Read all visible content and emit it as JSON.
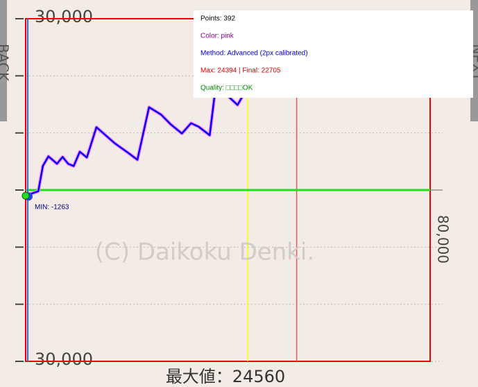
{
  "chart_data": {
    "type": "line",
    "title": "最大値：24560",
    "watermark": "(C) Daikoku Denki.",
    "annotation": "MIN: -1263",
    "x": [
      0,
      2500,
      3400,
      4500,
      6200,
      7300,
      8400,
      9500,
      10700,
      12100,
      14000,
      17600,
      20300,
      22100,
      24400,
      26800,
      28700,
      30900,
      32700,
      34200,
      36400,
      37500,
      40200,
      41900,
      43600
    ],
    "series": [
      {
        "color": "#0000ee",
        "values": [
          -1000,
          -200,
          4200,
          5900,
          4600,
          5800,
          4600,
          4200,
          6700,
          5700,
          11000,
          8200,
          6500,
          5300,
          14500,
          13200,
          11500,
          9900,
          11700,
          11100,
          9600,
          17500,
          16300,
          14900,
          17500
        ]
      }
    ],
    "xlim": [
      0,
      80000
    ],
    "xticks": [
      {
        "value": 80000,
        "label": "80,000"
      }
    ],
    "ylim": [
      -30000,
      30000
    ],
    "yticks": [
      {
        "value": -30000,
        "label": "30,000"
      },
      {
        "value": -20000,
        "label": null
      },
      {
        "value": -10000,
        "label": null
      },
      {
        "value": 0,
        "label": null
      },
      {
        "value": 10000,
        "label": null
      },
      {
        "value": 20000,
        "label": null
      },
      {
        "value": 30000,
        "label": "30,000"
      }
    ],
    "vlines": [
      {
        "x": 43900,
        "color": "#ffff00"
      },
      {
        "x": 53600,
        "color": "#ee5555"
      }
    ],
    "grid": true
  },
  "nav": {
    "back": "BACK",
    "next": "NEXT"
  },
  "panel": {
    "points": "Points: 392",
    "color": "Color: pink",
    "method": "Method: Advanced (2px calibrated)",
    "max": "Max: 24394 | Final: 22705",
    "quality": "Quality: □□□□OK"
  }
}
